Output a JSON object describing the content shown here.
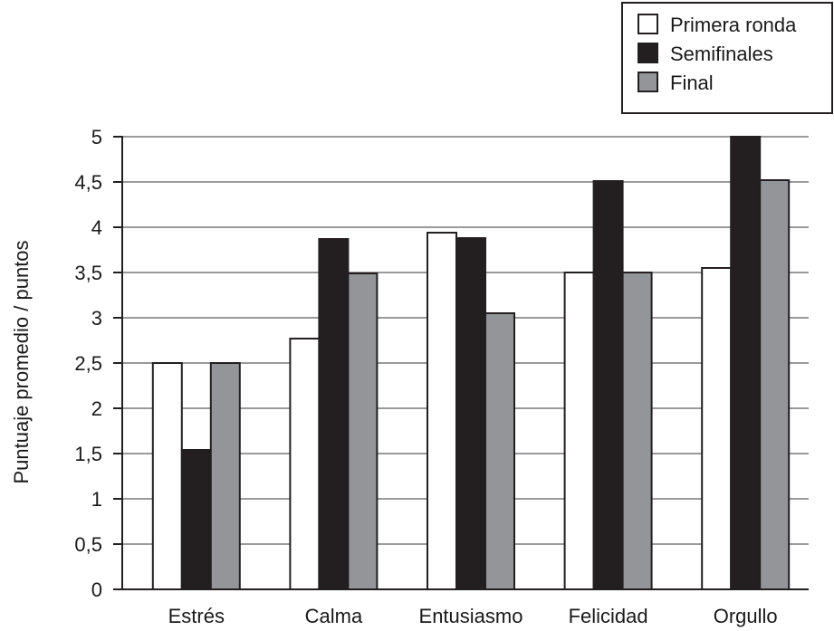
{
  "chart_data": {
    "type": "bar",
    "ylabel": "Puntuaje promedio / puntos",
    "categories": [
      "Estrés",
      "Calma",
      "Entusiasmo",
      "Felicidad",
      "Orgullo"
    ],
    "series": [
      {
        "name": "Primera ronda",
        "color": "#ffffff",
        "values": [
          2.5,
          2.77,
          3.94,
          3.5,
          3.55
        ]
      },
      {
        "name": "Semifinales",
        "color": "#231f20",
        "values": [
          1.54,
          3.87,
          3.88,
          4.51,
          5.0
        ]
      },
      {
        "name": "Final",
        "color": "#939598",
        "values": [
          2.5,
          3.49,
          3.05,
          3.5,
          4.52
        ]
      }
    ],
    "yticks": [
      "0",
      "0,5",
      "1",
      "1,5",
      "2",
      "2,5",
      "3",
      "3,5",
      "4",
      "4,5",
      "5"
    ],
    "ylim": [
      0,
      5
    ],
    "grid": true,
    "legend_position": "top-right"
  }
}
